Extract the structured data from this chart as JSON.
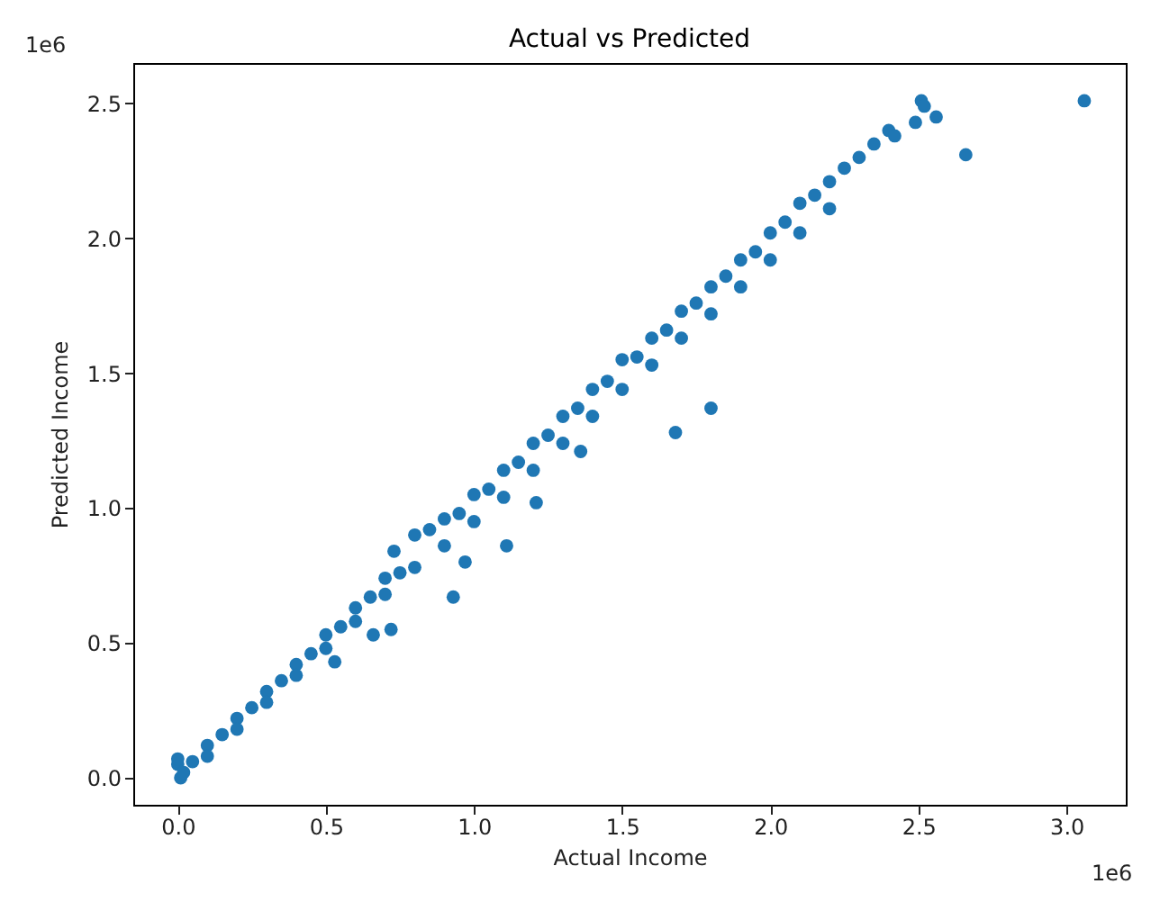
{
  "chart_data": {
    "type": "scatter",
    "title": "Actual vs Predicted",
    "xlabel": "Actual Income",
    "ylabel": "Predicted Income",
    "annotations": [
      "1e6",
      "1e6"
    ],
    "marker": "circle",
    "grid": false,
    "xlim": [
      -0.15,
      3.2
    ],
    "ylim": [
      -0.1,
      2.65
    ],
    "xticks": [
      {
        "value": 0,
        "label": "0.0"
      },
      {
        "value": 0.5,
        "label": "0.5"
      },
      {
        "value": 1,
        "label": "1.0"
      },
      {
        "value": 1.5,
        "label": "1.5"
      },
      {
        "value": 2,
        "label": "2.0"
      },
      {
        "value": 2.5,
        "label": "2.5"
      },
      {
        "value": 3,
        "label": "3.0"
      }
    ],
    "yticks": [
      {
        "value": 0,
        "label": "0.0"
      },
      {
        "value": 0.5,
        "label": "0.5"
      },
      {
        "value": 1,
        "label": "1.0"
      },
      {
        "value": 1.5,
        "label": "1.5"
      },
      {
        "value": 2,
        "label": "2.0"
      },
      {
        "value": 2.5,
        "label": "2.5"
      }
    ],
    "series": [
      {
        "color": "#1f77b4",
        "x": [
          0.0,
          0.01,
          0.02,
          0.0,
          0.05,
          0.1,
          0.1,
          0.15,
          0.2,
          0.2,
          0.25,
          0.3,
          0.3,
          0.35,
          0.4,
          0.4,
          0.45,
          0.5,
          0.5,
          0.55,
          0.6,
          0.6,
          0.65,
          0.7,
          0.7,
          0.75,
          0.8,
          0.8,
          0.85,
          0.9,
          0.9,
          0.95,
          1.0,
          1.0,
          1.05,
          1.1,
          1.1,
          1.15,
          1.2,
          1.2,
          1.25,
          1.3,
          1.3,
          1.35,
          1.4,
          1.4,
          1.45,
          1.5,
          1.5,
          1.55,
          1.6,
          1.6,
          1.65,
          1.7,
          1.7,
          1.75,
          1.8,
          1.8,
          1.85,
          1.9,
          1.9,
          1.95,
          2.0,
          2.0,
          2.05,
          2.1,
          2.1,
          2.15,
          2.2,
          2.2,
          2.25,
          2.3,
          2.35,
          2.4,
          2.42,
          2.49,
          2.51,
          2.52,
          2.56,
          2.66,
          3.06,
          1.8,
          1.68,
          1.36,
          1.21,
          1.11,
          0.97,
          0.93,
          0.72,
          0.66,
          0.53,
          0.73
        ],
        "values": [
          0.05,
          0.0,
          0.02,
          0.07,
          0.06,
          0.12,
          0.08,
          0.16,
          0.22,
          0.18,
          0.26,
          0.32,
          0.28,
          0.36,
          0.42,
          0.38,
          0.46,
          0.53,
          0.48,
          0.56,
          0.63,
          0.58,
          0.67,
          0.74,
          0.68,
          0.76,
          0.9,
          0.78,
          0.92,
          0.96,
          0.86,
          0.98,
          1.05,
          0.95,
          1.07,
          1.14,
          1.04,
          1.17,
          1.24,
          1.14,
          1.27,
          1.34,
          1.24,
          1.37,
          1.44,
          1.34,
          1.47,
          1.55,
          1.44,
          1.56,
          1.63,
          1.53,
          1.66,
          1.73,
          1.63,
          1.76,
          1.82,
          1.72,
          1.86,
          1.92,
          1.82,
          1.95,
          2.02,
          1.92,
          2.06,
          2.13,
          2.02,
          2.16,
          2.21,
          2.11,
          2.26,
          2.3,
          2.35,
          2.4,
          2.38,
          2.43,
          2.51,
          2.49,
          2.45,
          2.31,
          2.51,
          1.37,
          1.28,
          1.21,
          1.02,
          0.86,
          0.8,
          0.67,
          0.55,
          0.53,
          0.43,
          0.84
        ]
      }
    ]
  }
}
